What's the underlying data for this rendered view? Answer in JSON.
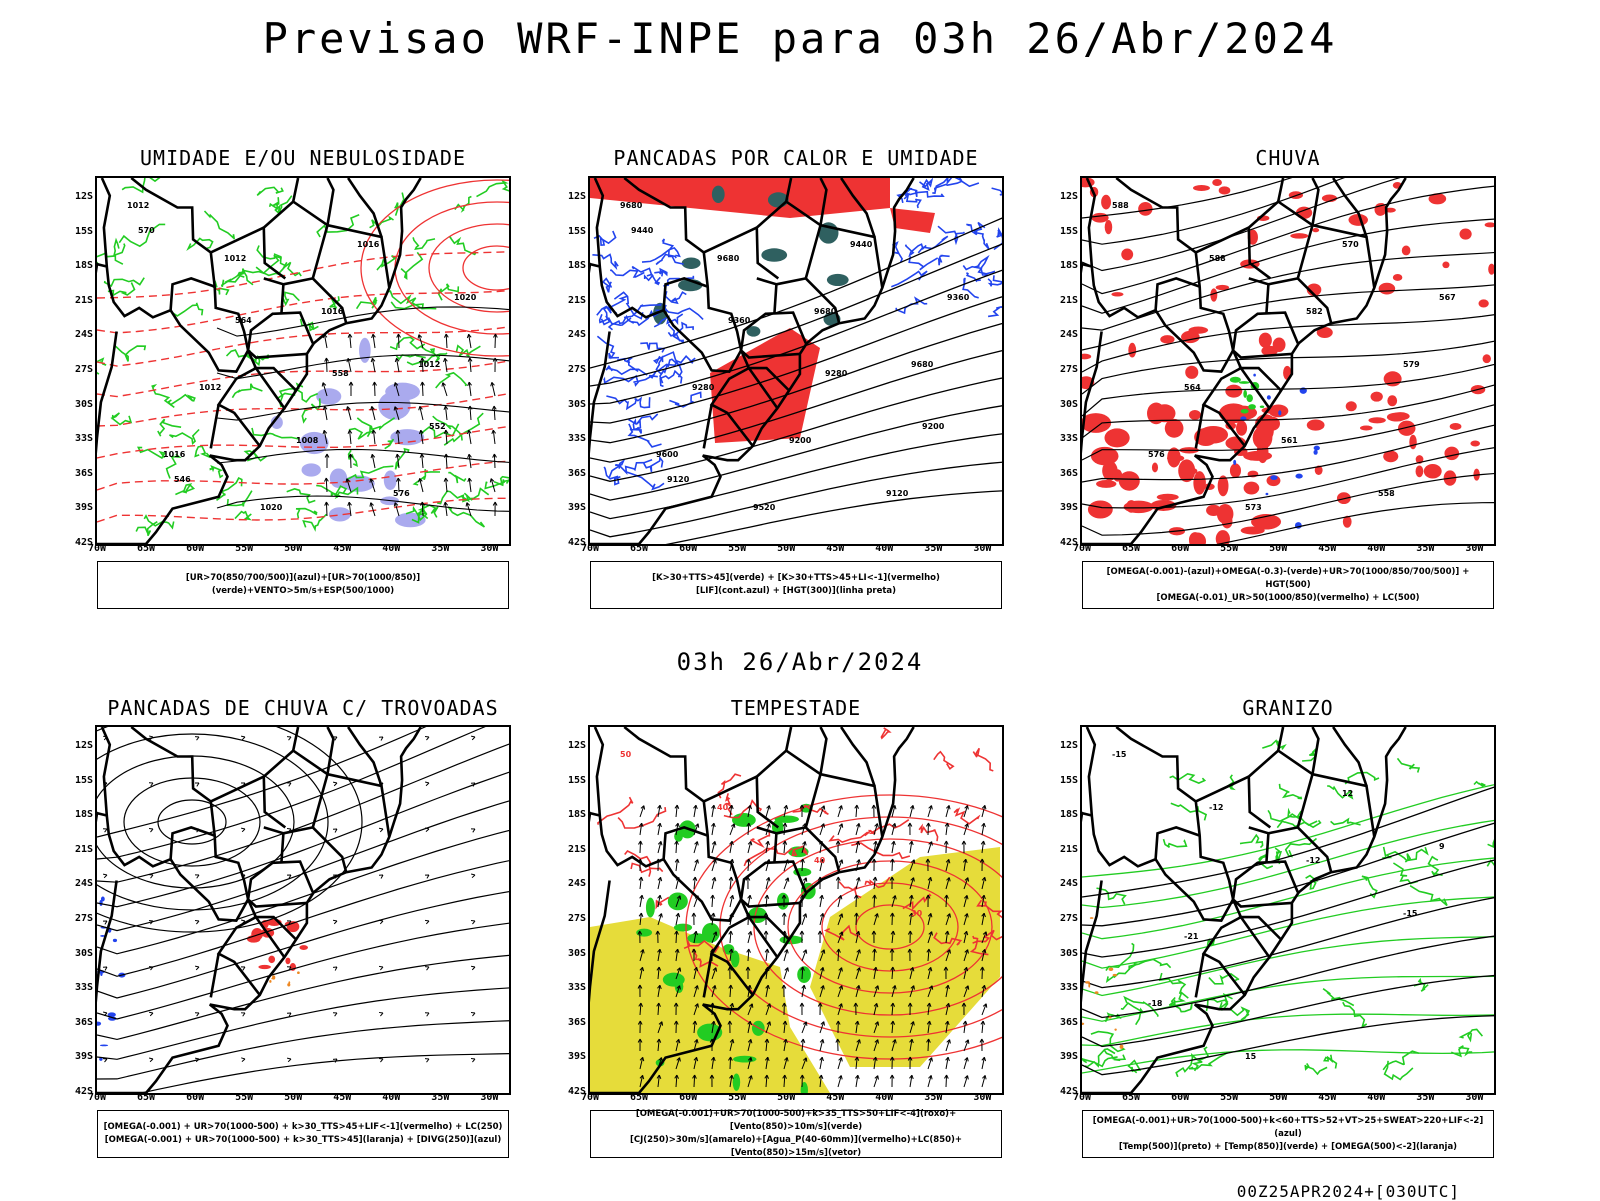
{
  "title": "Previsao WRF-INPE  para 03h 26/Abr/2024",
  "middle_title": "03h 26/Abr/2024",
  "footer": "00Z25APR2024+[030UTC]",
  "lat_labels": [
    "12S",
    "15S",
    "18S",
    "21S",
    "24S",
    "27S",
    "30S",
    "33S",
    "36S",
    "39S",
    "42S"
  ],
  "lon_labels": [
    "70W",
    "65W",
    "60W",
    "55W",
    "50W",
    "45W",
    "40W",
    "35W",
    "30W"
  ],
  "panels": [
    {
      "id": "umidade",
      "title": "UMIDADE E/OU NEBULOSIDADE",
      "legend": [
        "[UR>70(850/700/500)](azul)+[UR>70(1000/850)](verde)+VENTO>5m/s+ESP(500/1000)"
      ],
      "contour_labels": [
        "1012",
        "1012",
        "1016",
        "1012",
        "1016",
        "1020",
        "1016",
        "1020",
        "1012",
        "1008",
        "576",
        "570",
        "564",
        "558",
        "552",
        "546"
      ]
    },
    {
      "id": "pancadas-calor",
      "title": "PANCADAS POR CALOR E UMIDADE",
      "legend": [
        "[K>30+TTS>45](verde) + [K>30+TTS>45+LI<-1](vermelho)",
        "[LIF](cont.azul) + [HGT(300)](linha preta)"
      ],
      "contour_labels": [
        "9680",
        "9680",
        "9680",
        "9680",
        "9600",
        "9520",
        "9440",
        "9360",
        "9280",
        "9200",
        "9120",
        "9440",
        "9360",
        "9280",
        "9200",
        "9120"
      ]
    },
    {
      "id": "chuva",
      "title": "CHUVA",
      "legend": [
        "[OMEGA(-0.001)-(azul)+OMEGA(-0.3)-(verde)+UR>70(1000/850/700/500)] + HGT(500)",
        "[OMEGA(-0.01)_UR>50(1000/850)(vermelho) + LC(500)"
      ],
      "contour_labels": [
        "588",
        "588",
        "582",
        "579",
        "576",
        "573",
        "570",
        "567",
        "564",
        "561",
        "558"
      ]
    },
    {
      "id": "pancadas-trovoadas",
      "title": "PANCADAS DE CHUVA C/ TROVOADAS",
      "legend": [
        "[OMEGA(-0.001) + UR>70(1000-500) + k>30_TTS>45+LIF<-1](vermelho) + LC(250)",
        "[OMEGA(-0.001) + UR>70(1000-500) + k>30_TTS>45](laranja) + [DIVG(250)](azul)"
      ],
      "contour_labels": []
    },
    {
      "id": "tempestade",
      "title": "TEMPESTADE",
      "legend": [
        "[OMEGA(-0.001)+UR>70(1000-500)+k>35_TTS>50+LIF<-4](roxo)+[Vento(850)>10m/s](verde)",
        "[CJ(250)>30m/s](amarelo)+[Agua_P(40-60mm)](vermelho)+LC(850)+[Vento(850)>15m/s](vetor)"
      ],
      "contour_labels": [
        "50",
        "40",
        "40",
        "30"
      ]
    },
    {
      "id": "granizo",
      "title": "GRANIZO",
      "legend": [
        "[OMEGA(-0.001)+UR>70(1000-500)+k<60+TTS>52+VT>25+SWEAT>220+LIF<-2](azul)",
        "[Temp(500)](preto) + [Temp(850)](verde) + [OMEGA(500)<-2](laranja)"
      ],
      "contour_labels": [
        "-15",
        "-12",
        "-12",
        "-15",
        "-18",
        "15",
        "12",
        "9",
        "-21"
      ]
    }
  ],
  "colors": {
    "black": "#000000",
    "green": "#22cc22",
    "blue": "#2244ee",
    "red": "#ee3333",
    "lavender": "#aaaaee",
    "teal": "#2f6060",
    "yellow": "#e6dc3a",
    "orange": "#ee8822"
  }
}
